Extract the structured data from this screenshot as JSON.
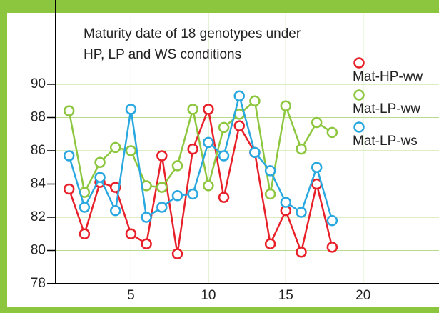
{
  "chart_data": {
    "type": "line",
    "title": [
      "Maturity date of 18 genotypes under",
      "HP, LP and WS conditions"
    ],
    "x": [
      1,
      2,
      3,
      4,
      5,
      6,
      7,
      8,
      9,
      10,
      11,
      12,
      13,
      14,
      15,
      16,
      17,
      18
    ],
    "series": [
      {
        "name": "Mat-HP-ww",
        "color": "#e8202a",
        "values": [
          83.7,
          81.0,
          84.1,
          83.8,
          81.0,
          80.4,
          85.7,
          79.8,
          86.1,
          88.5,
          83.2,
          87.5,
          85.9,
          80.4,
          82.4,
          79.9,
          84.0,
          80.2
        ]
      },
      {
        "name": "Mat-LP-ww",
        "color": "#8dc63f",
        "values": [
          88.4,
          83.5,
          85.3,
          86.2,
          86.0,
          83.9,
          83.8,
          85.1,
          88.5,
          83.9,
          87.4,
          88.2,
          89.0,
          83.4,
          88.7,
          86.1,
          87.7,
          87.1
        ]
      },
      {
        "name": "Mat-LP-ws",
        "color": "#29a8e0",
        "values": [
          85.7,
          82.6,
          84.4,
          82.4,
          88.5,
          82.0,
          82.6,
          83.3,
          83.4,
          86.5,
          85.7,
          89.3,
          85.9,
          84.8,
          82.9,
          82.3,
          85.0,
          81.8
        ]
      }
    ],
    "xlim": [
      0,
      24.9
    ],
    "ylim": [
      78,
      94.3
    ],
    "xticks": [
      5,
      10,
      15,
      20
    ],
    "yticks": [
      78,
      80,
      82,
      84,
      86,
      88,
      90
    ],
    "grid": true,
    "legend": "upper right"
  }
}
